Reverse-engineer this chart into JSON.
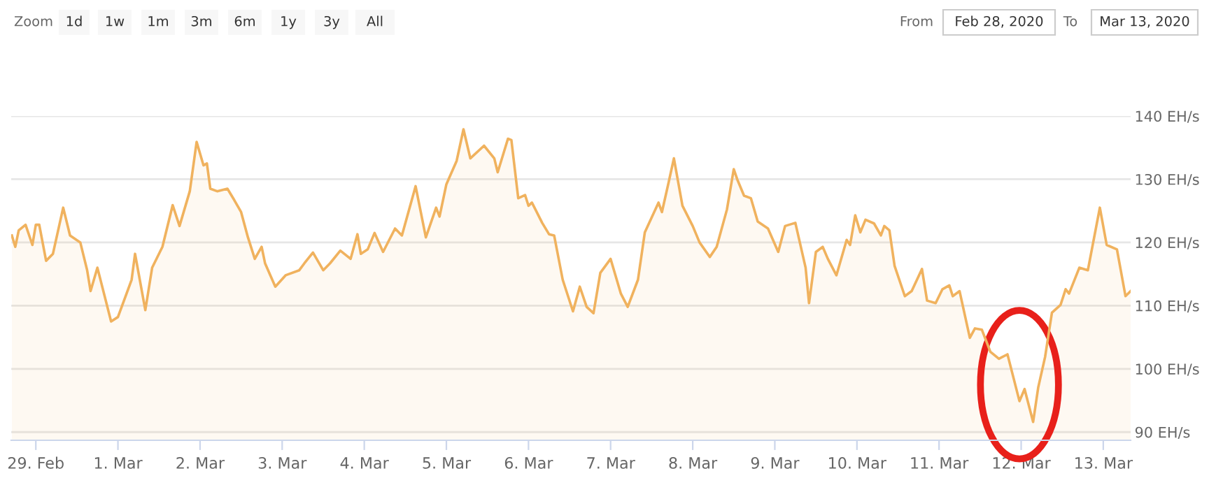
{
  "chart_data": {
    "type": "area",
    "annotations": [
      "Zoom",
      "1d",
      "1w",
      "1m",
      "3m",
      "6m",
      "1y",
      "3y",
      "All",
      "From",
      "Feb 28, 2020",
      "To",
      "Mar 13, 2020"
    ],
    "x": [
      "2020-02-28T17:00",
      "2020-02-28T18:00",
      "2020-02-28T19:00",
      "2020-02-28T21:00",
      "2020-02-28T23:00",
      "2020-02-29T00:00",
      "2020-02-29T01:00",
      "2020-02-29T03:00",
      "2020-02-29T05:00",
      "2020-02-29T08:00",
      "2020-02-29T10:00",
      "2020-02-29T13:00",
      "2020-02-29T15:00",
      "2020-02-29T16:00",
      "2020-02-29T18:00",
      "2020-02-29T22:00",
      "2020-03-01T00:00",
      "2020-03-01T04:00",
      "2020-03-01T05:00",
      "2020-03-01T08:00",
      "2020-03-01T10:00",
      "2020-03-01T13:00",
      "2020-03-01T16:00",
      "2020-03-01T18:00",
      "2020-03-01T21:00",
      "2020-03-01T23:00",
      "2020-03-02T01:00",
      "2020-03-02T02:00",
      "2020-03-02T03:00",
      "2020-03-02T05:00",
      "2020-03-02T08:00",
      "2020-03-02T10:00",
      "2020-03-02T12:00",
      "2020-03-02T14:00",
      "2020-03-02T16:00",
      "2020-03-02T18:00",
      "2020-03-02T19:00",
      "2020-03-02T22:00",
      "2020-03-03T01:00",
      "2020-03-03T05:00",
      "2020-03-03T06:30",
      "2020-03-03T09:00",
      "2020-03-03T12:00",
      "2020-03-03T14:00",
      "2020-03-03T17:00",
      "2020-03-03T20:00",
      "2020-03-03T22:00",
      "2020-03-03T23:00",
      "2020-03-04T01:00",
      "2020-03-04T03:00",
      "2020-03-04T05:30",
      "2020-03-04T09:00",
      "2020-03-04T11:00",
      "2020-03-04T15:00",
      "2020-03-04T18:00",
      "2020-03-04T21:00",
      "2020-03-04T22:00",
      "2020-03-05T00:00",
      "2020-03-05T03:00",
      "2020-03-05T05:00",
      "2020-03-05T07:00",
      "2020-03-05T11:00",
      "2020-03-05T14:00",
      "2020-03-05T15:00",
      "2020-03-05T18:00",
      "2020-03-05T19:00",
      "2020-03-05T21:00",
      "2020-03-05T23:00",
      "2020-03-06T00:00",
      "2020-03-06T01:00",
      "2020-03-06T04:00",
      "2020-03-06T06:00",
      "2020-03-06T07:30",
      "2020-03-06T10:00",
      "2020-03-06T13:00",
      "2020-03-06T15:00",
      "2020-03-06T17:00",
      "2020-03-06T19:00",
      "2020-03-06T21:00",
      "2020-03-07T00:00",
      "2020-03-07T03:00",
      "2020-03-07T05:00",
      "2020-03-07T08:00",
      "2020-03-07T10:00",
      "2020-03-07T14:00",
      "2020-03-07T15:00",
      "2020-03-07T17:00",
      "2020-03-07T18:30",
      "2020-03-07T21:00",
      "2020-03-08T00:00",
      "2020-03-08T02:00",
      "2020-03-08T05:00",
      "2020-03-08T07:00",
      "2020-03-08T10:00",
      "2020-03-08T12:00",
      "2020-03-08T13:00",
      "2020-03-08T15:00",
      "2020-03-08T17:00",
      "2020-03-08T19:00",
      "2020-03-08T22:00",
      "2020-03-09T01:00",
      "2020-03-09T03:00",
      "2020-03-09T06:00",
      "2020-03-09T09:00",
      "2020-03-09T10:00",
      "2020-03-09T12:00",
      "2020-03-09T14:00",
      "2020-03-09T15:30",
      "2020-03-09T18:00",
      "2020-03-09T21:00",
      "2020-03-09T22:00",
      "2020-03-09T23:30",
      "2020-03-10T01:00",
      "2020-03-10T02:30",
      "2020-03-10T05:00",
      "2020-03-10T07:00",
      "2020-03-10T08:00",
      "2020-03-10T09:30",
      "2020-03-10T11:00",
      "2020-03-10T14:00",
      "2020-03-10T16:00",
      "2020-03-10T19:00",
      "2020-03-10T20:30",
      "2020-03-10T23:00",
      "2020-03-11T01:00",
      "2020-03-11T03:00",
      "2020-03-11T04:00",
      "2020-03-11T06:00",
      "2020-03-11T09:00",
      "2020-03-11T10:30",
      "2020-03-11T12:30",
      "2020-03-11T15:00",
      "2020-03-11T17:30",
      "2020-03-11T20:00",
      "2020-03-11T23:30",
      "2020-03-12T01:00",
      "2020-03-12T03:30",
      "2020-03-12T05:00",
      "2020-03-12T07:00",
      "2020-03-12T09:00",
      "2020-03-12T11:30",
      "2020-03-12T13:00",
      "2020-03-12T14:00",
      "2020-03-12T17:00",
      "2020-03-12T19:30",
      "2020-03-12T23:00",
      "2020-03-13T01:00",
      "2020-03-13T04:00",
      "2020-03-13T06:30",
      "2020-03-13T08:00"
    ],
    "series": [
      {
        "color": "#f0b25e",
        "values": [
          121.1,
          119.3,
          121.9,
          122.8,
          119.6,
          122.8,
          122.8,
          117.1,
          118.2,
          125.5,
          121.1,
          120.0,
          115.6,
          112.3,
          116.0,
          107.5,
          108.2,
          114.1,
          118.2,
          109.3,
          116.0,
          119.3,
          125.9,
          122.6,
          128.1,
          135.9,
          132.2,
          132.5,
          128.5,
          128.1,
          128.5,
          126.7,
          124.8,
          120.8,
          117.4,
          119.3,
          116.7,
          113.0,
          114.8,
          115.6,
          116.7,
          118.4,
          115.6,
          116.7,
          118.7,
          117.4,
          121.3,
          118.2,
          118.9,
          121.5,
          118.5,
          122.2,
          121.1,
          128.9,
          120.8,
          125.5,
          124.1,
          129.2,
          132.9,
          137.9,
          133.3,
          135.3,
          133.3,
          131.1,
          136.4,
          136.2,
          127.0,
          127.5,
          125.8,
          126.3,
          123.1,
          121.3,
          121.1,
          114.1,
          109.1,
          113.0,
          109.8,
          108.8,
          115.2,
          117.4,
          111.9,
          109.8,
          114.1,
          121.6,
          126.3,
          124.8,
          129.6,
          133.3,
          125.8,
          122.6,
          120.0,
          117.7,
          119.3,
          125.2,
          131.6,
          130.0,
          127.4,
          127.0,
          123.3,
          122.2,
          118.5,
          122.6,
          123.1,
          116.0,
          110.4,
          118.5,
          119.3,
          117.4,
          114.8,
          120.4,
          119.6,
          124.3,
          121.6,
          123.6,
          123.0,
          121.1,
          122.6,
          121.9,
          116.3,
          111.5,
          112.3,
          115.8,
          110.8,
          110.4,
          112.6,
          113.2,
          111.5,
          112.3,
          104.9,
          106.4,
          106.2,
          102.7,
          101.6,
          102.3,
          94.9,
          96.8,
          91.6,
          97.1,
          101.9,
          108.9,
          110.1,
          112.6,
          111.9,
          116.0,
          115.6,
          125.5,
          119.6,
          118.9,
          111.5,
          112.3
        ]
      }
    ],
    "xlim": [
      "2020-02-28T16:48",
      "2020-03-13T08:00"
    ],
    "xticks": [
      {
        "value": "2020-02-29",
        "label": "29. Feb"
      },
      {
        "value": "2020-03-01",
        "label": "1. Mar"
      },
      {
        "value": "2020-03-02",
        "label": "2. Mar"
      },
      {
        "value": "2020-03-03",
        "label": "3. Mar"
      },
      {
        "value": "2020-03-04",
        "label": "4. Mar"
      },
      {
        "value": "2020-03-05",
        "label": "5. Mar"
      },
      {
        "value": "2020-03-06",
        "label": "6. Mar"
      },
      {
        "value": "2020-03-07",
        "label": "7. Mar"
      },
      {
        "value": "2020-03-08",
        "label": "8. Mar"
      },
      {
        "value": "2020-03-09",
        "label": "9. Mar"
      },
      {
        "value": "2020-03-10",
        "label": "10. Mar"
      },
      {
        "value": "2020-03-11",
        "label": "11. Mar"
      },
      {
        "value": "2020-03-12",
        "label": "12. Mar"
      },
      {
        "value": "2020-03-13",
        "label": "13. Mar"
      }
    ],
    "ylim": [
      88.7,
      140
    ],
    "yticks": [
      {
        "value": 90,
        "label": "90 EH/s"
      },
      {
        "value": 100,
        "label": "100 EH/s"
      },
      {
        "value": 110,
        "label": "110 EH/s"
      },
      {
        "value": 120,
        "label": "120 EH/s"
      },
      {
        "value": 130,
        "label": "130 EH/s"
      },
      {
        "value": 140,
        "label": "140 EH/s"
      }
    ],
    "grid": "y"
  }
}
